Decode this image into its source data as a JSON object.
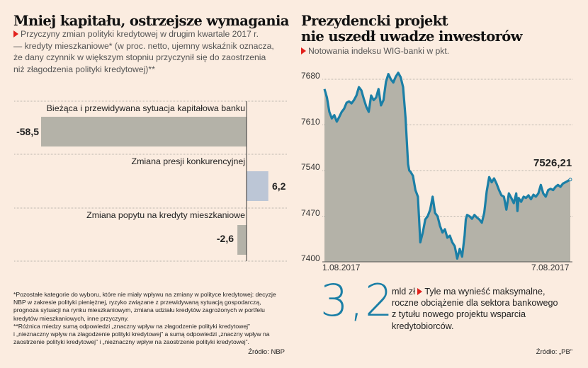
{
  "left": {
    "title": "Mniej kapitału, ostrzejsze wymagania",
    "subtitle_lines": [
      "Przyczyny zmian polityki kredytowej w drugim kwartale 2017 r.",
      "— kredyty mieszkaniowe* (w proc. netto, ujemny wskaźnik oznacza,",
      "że dany czynnik w większym stopniu przyczynił się do zaostrzenia",
      "niż złagodzenia polityki kredytowej)**"
    ],
    "footnote_lines": [
      "*Pozostałe kategorie do wyboru, które nie miały wpływu na zmiany w polityce kredytowej: decyzje",
      "NBP w zakresie polityki pieniężnej, ryzyko związane z przewidywaną sytuacją gospodarczą,",
      "prognoza sytuacji na rynku mieszkaniowym, zmiana udziału kredytów zagrożonych w portfelu",
      "kredytów mieszkaniowych, inne przyczyny.",
      "**Różnica miedzy sumą odpowiedzi „znaczny wpływ na złagodzenie polityki kredytowej”",
      "i „nieznaczny wpływ na złagodzenie polityki kredytowej” a sumą odpowiedzi „znaczny wpływ na",
      "zaostrzenie polityki kredytowej” i „nieznaczny wpływ na zaostrzenie polityki kredytowej”."
    ],
    "source": "Źródło: NBP"
  },
  "right": {
    "title_lines": [
      "Prezydencki projekt",
      "nie uszedł uwadze inwestorów"
    ],
    "subtitle": "Notowania indeksu WIG-banki w pkt.",
    "big_number": "3,2",
    "unit": "mld zł",
    "note_lines": [
      "Tyle ma wynieść maksymalne,",
      "roczne obciążenie dla sektora bankowego",
      "z tytułu nowego projektu wsparcia",
      "kredytobiorców."
    ],
    "source": "Źródło: „PB”"
  },
  "colors": {
    "background": "#fbece0",
    "accent_red": "#e2211c",
    "line_blue": "#1b7fa6",
    "area_gray": "#b4b2a8",
    "bar_gray": "#b4b2a8",
    "bar_blue": "#bcc6d6"
  },
  "chart_data": [
    {
      "type": "bar",
      "orientation": "horizontal",
      "categories": [
        "Bieżąca i przewidywana sytuacja kapitałowa banku",
        "Zmiana presji konkurencyjnej",
        "Zmiana popytu na kredyty mieszkaniowe"
      ],
      "values": [
        -58.5,
        6.2,
        -2.6
      ],
      "value_labels": [
        "-58,5",
        "6,2",
        "-2,6"
      ],
      "bar_colors": [
        "#b4b2a8",
        "#bcc6d6",
        "#b4b2a8"
      ],
      "xlim": [
        -58.5,
        10
      ],
      "title": "Mniej kapitału, ostrzejsze wymagania",
      "xlabel": "",
      "ylabel": ""
    },
    {
      "type": "area",
      "title": "Prezydencki projekt nie uszedł uwadze inwestorów",
      "ylabel": "pkt.",
      "ylim": [
        7400,
        7700
      ],
      "yticks": [
        7400,
        7470,
        7540,
        7610,
        7680
      ],
      "ytick_labels": [
        "7400",
        "7470",
        "7540",
        "7610",
        "7680"
      ],
      "xtick_labels": [
        "1.08.2017",
        "7.08.2017"
      ],
      "grid": true,
      "end_label": "7526,21",
      "end_value": 7526.21,
      "series": [
        {
          "name": "WIG-banki",
          "x": [
            0,
            0.01,
            0.02,
            0.03,
            0.04,
            0.05,
            0.06,
            0.07,
            0.08,
            0.09,
            0.1,
            0.11,
            0.12,
            0.13,
            0.14,
            0.15,
            0.16,
            0.17,
            0.18,
            0.19,
            0.2,
            0.21,
            0.22,
            0.23,
            0.24,
            0.25,
            0.26,
            0.27,
            0.28,
            0.29,
            0.3,
            0.31,
            0.32,
            0.33,
            0.34,
            0.345,
            0.35,
            0.36,
            0.37,
            0.38,
            0.39,
            0.4,
            0.41,
            0.42,
            0.43,
            0.44,
            0.45,
            0.46,
            0.47,
            0.48,
            0.49,
            0.5,
            0.51,
            0.52,
            0.53,
            0.54,
            0.55,
            0.56,
            0.57,
            0.575,
            0.58,
            0.59,
            0.6,
            0.61,
            0.62,
            0.63,
            0.64,
            0.65,
            0.66,
            0.67,
            0.68,
            0.69,
            0.7,
            0.71,
            0.72,
            0.73,
            0.74,
            0.75,
            0.76,
            0.77,
            0.78,
            0.785,
            0.79,
            0.8,
            0.81,
            0.82,
            0.83,
            0.84,
            0.85,
            0.86,
            0.87,
            0.88,
            0.89,
            0.9,
            0.91,
            0.92,
            0.93,
            0.94,
            0.95,
            0.96,
            0.97,
            0.98,
            0.99,
            1.0
          ],
          "y": [
            7665,
            7652,
            7630,
            7620,
            7625,
            7615,
            7622,
            7630,
            7635,
            7644,
            7646,
            7643,
            7648,
            7655,
            7668,
            7663,
            7650,
            7638,
            7630,
            7655,
            7648,
            7652,
            7665,
            7640,
            7648,
            7676,
            7688,
            7680,
            7675,
            7684,
            7690,
            7683,
            7668,
            7620,
            7550,
            7540,
            7538,
            7532,
            7510,
            7500,
            7430,
            7445,
            7465,
            7470,
            7480,
            7500,
            7475,
            7470,
            7455,
            7445,
            7450,
            7437,
            7440,
            7430,
            7424,
            7405,
            7420,
            7408,
            7440,
            7465,
            7472,
            7470,
            7466,
            7472,
            7468,
            7465,
            7460,
            7475,
            7508,
            7530,
            7522,
            7528,
            7520,
            7510,
            7502,
            7500,
            7480,
            7505,
            7498,
            7490,
            7505,
            7478,
            7498,
            7492,
            7500,
            7498,
            7502,
            7496,
            7503,
            7500,
            7505,
            7518,
            7505,
            7500,
            7510,
            7512,
            7510,
            7515,
            7518,
            7515,
            7520,
            7522,
            7524,
            7526.21
          ]
        }
      ]
    }
  ]
}
